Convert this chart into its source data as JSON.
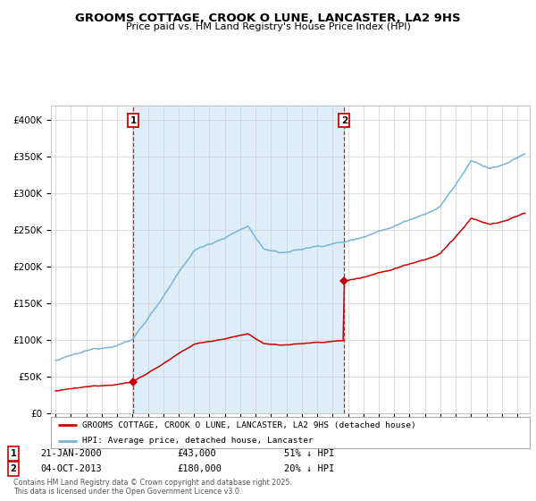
{
  "title": "GROOMS COTTAGE, CROOK O LUNE, LANCASTER, LA2 9HS",
  "subtitle": "Price paid vs. HM Land Registry's House Price Index (HPI)",
  "hpi_label": "HPI: Average price, detached house, Lancaster",
  "price_label": "GROOMS COTTAGE, CROOK O LUNE, LANCASTER, LA2 9HS (detached house)",
  "hpi_color": "#7ab3d4",
  "price_color": "#cc0000",
  "marker_color": "#cc0000",
  "shade_color": "#ddeef8",
  "transaction1_date": 2000.055,
  "transaction1_price": 43000,
  "transaction1_label": "21-JAN-2000",
  "transaction1_pct": "51% ↓ HPI",
  "transaction2_date": 2013.753,
  "transaction2_price": 180000,
  "transaction2_label": "04-OCT-2013",
  "transaction2_pct": "20% ↓ HPI",
  "footer": "Contains HM Land Registry data © Crown copyright and database right 2025.\nThis data is licensed under the Open Government Licence v3.0.",
  "ylim": [
    0,
    420000
  ],
  "xlim_start": 1994.7,
  "xlim_end": 2025.8
}
